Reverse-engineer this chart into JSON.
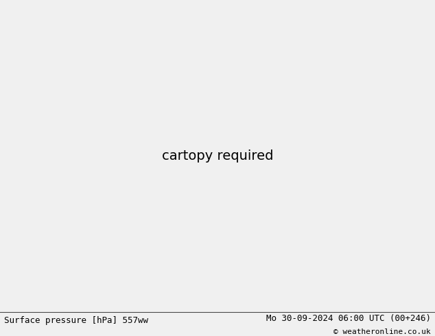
{
  "title_left": "Surface pressure [hPa] 557ww",
  "title_right": "Mo 30-09-2024 06:00 UTC (00+246)",
  "copyright": "© weatheronline.co.uk",
  "ocean_color": "#e8e8e8",
  "land_color": "#c8ddb8",
  "gray_color": "#b8b0a8",
  "border_color": "#888888",
  "footer_color": "#f0f0f0",
  "figsize": [
    6.34,
    4.9
  ],
  "dpi": 100,
  "lon_min": -175,
  "lon_max": -40,
  "lat_min": 15,
  "lat_max": 80
}
